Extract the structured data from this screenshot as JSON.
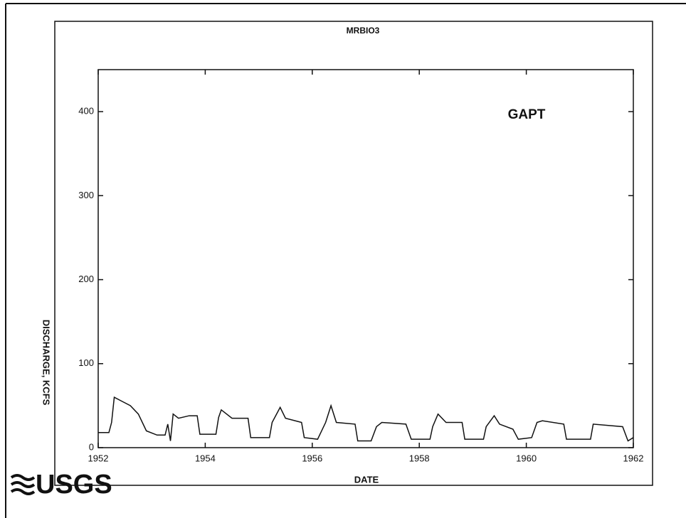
{
  "chart_data": {
    "type": "line",
    "title": "MRBIO3",
    "annotation": "GAPT",
    "x_label": "DATE",
    "y_label": "DISCHARGE, KCFS",
    "logo": "USGS",
    "x": [
      1952.0,
      1952.2,
      1952.25,
      1952.3,
      1952.45,
      1952.6,
      1952.75,
      1952.9,
      1953.1,
      1953.25,
      1953.3,
      1953.35,
      1953.4,
      1953.5,
      1953.7,
      1953.85,
      1953.9,
      1954.2,
      1954.25,
      1954.3,
      1954.5,
      1954.8,
      1954.85,
      1955.2,
      1955.25,
      1955.4,
      1955.5,
      1955.8,
      1955.85,
      1956.1,
      1956.25,
      1956.35,
      1956.45,
      1956.8,
      1956.85,
      1957.1,
      1957.2,
      1957.3,
      1957.75,
      1957.85,
      1958.2,
      1958.25,
      1958.35,
      1958.5,
      1958.8,
      1958.85,
      1959.2,
      1959.25,
      1959.4,
      1959.5,
      1959.75,
      1959.85,
      1960.1,
      1960.2,
      1960.3,
      1960.7,
      1960.75,
      1961.2,
      1961.25,
      1961.8,
      1961.9,
      1962.0
    ],
    "series": [
      {
        "name": "GAPT",
        "color": "#111111",
        "values": [
          18,
          18,
          30,
          60,
          55,
          50,
          40,
          20,
          15,
          15,
          28,
          8,
          40,
          35,
          38,
          38,
          16,
          16,
          36,
          45,
          35,
          35,
          12,
          12,
          30,
          48,
          35,
          30,
          12,
          10,
          30,
          50,
          30,
          28,
          8,
          8,
          25,
          30,
          28,
          10,
          10,
          25,
          40,
          30,
          30,
          10,
          10,
          25,
          38,
          28,
          22,
          10,
          12,
          30,
          32,
          28,
          10,
          10,
          28,
          25,
          8,
          12
        ]
      }
    ],
    "xlim": [
      1952,
      1962
    ],
    "xticks": [
      1952,
      1954,
      1956,
      1958,
      1960,
      1962
    ],
    "ylim": [
      0,
      450
    ],
    "yticks": [
      0,
      100,
      200,
      300,
      400
    ]
  }
}
